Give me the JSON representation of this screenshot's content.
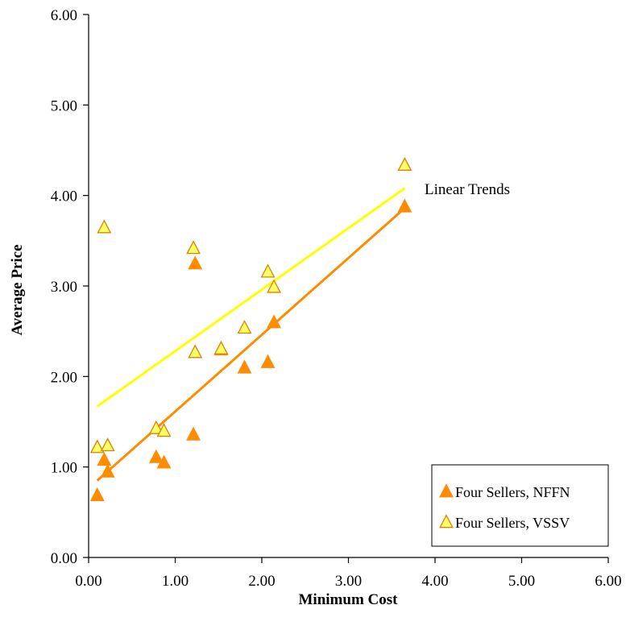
{
  "chart_data": {
    "type": "scatter",
    "title": "",
    "xlabel": "Minimum Cost",
    "ylabel": "Average Price",
    "xlim": [
      0,
      6
    ],
    "ylim": [
      0,
      6
    ],
    "x_ticks": [
      "0.00",
      "1.00",
      "2.00",
      "3.00",
      "4.00",
      "5.00",
      "6.00"
    ],
    "y_ticks": [
      "0.00",
      "1.00",
      "2.00",
      "3.00",
      "4.00",
      "5.00",
      "6.00"
    ],
    "grid": false,
    "legend_position": "bottom-right",
    "annotation": "Linear Trends",
    "series": [
      {
        "name": "Four Sellers, NFFN",
        "marker": "triangle",
        "color": "#FF8C00",
        "edge_color": "#FF8C00",
        "trend_color": "#FF8C00",
        "points": [
          [
            0.1,
            0.68
          ],
          [
            0.18,
            1.07
          ],
          [
            0.22,
            0.94
          ],
          [
            0.78,
            1.1
          ],
          [
            0.87,
            1.04
          ],
          [
            1.21,
            1.35
          ],
          [
            1.23,
            3.24
          ],
          [
            1.53,
            2.29
          ],
          [
            1.8,
            2.09
          ],
          [
            2.07,
            2.15
          ],
          [
            2.14,
            2.59
          ],
          [
            3.65,
            3.87
          ]
        ],
        "trend": [
          [
            0.1,
            0.85
          ],
          [
            3.65,
            3.86
          ]
        ]
      },
      {
        "name": "Four Sellers, VSSV",
        "marker": "triangle",
        "color": "#FFFF66",
        "edge_color": "#E08000",
        "trend_color": "#FFFF00",
        "points": [
          [
            0.1,
            1.21
          ],
          [
            0.18,
            3.64
          ],
          [
            0.22,
            1.23
          ],
          [
            0.78,
            1.42
          ],
          [
            0.87,
            1.39
          ],
          [
            1.21,
            3.41
          ],
          [
            1.23,
            2.26
          ],
          [
            1.53,
            2.3
          ],
          [
            1.8,
            2.53
          ],
          [
            2.07,
            3.15
          ],
          [
            2.14,
            2.98
          ],
          [
            3.65,
            4.33
          ]
        ],
        "trend": [
          [
            0.1,
            1.67
          ],
          [
            3.65,
            4.08
          ]
        ]
      }
    ]
  }
}
